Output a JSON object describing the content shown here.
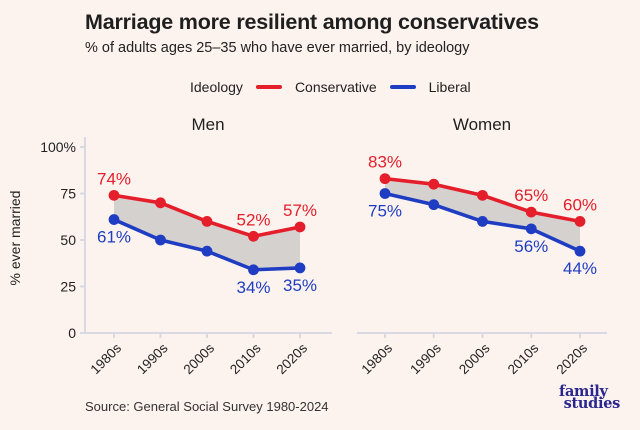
{
  "header": {
    "title": "Marriage more resilient among conservatives",
    "subtitle": "% of adults ages 25–35 who have ever married, by ideology"
  },
  "legend": {
    "title": "Ideology",
    "items": [
      {
        "label": "Conservative",
        "color": "#e41e2a"
      },
      {
        "label": "Liberal",
        "color": "#1f3dc2"
      }
    ]
  },
  "colors": {
    "background": "#fcf3ee",
    "text": "#1f1f1f",
    "subtext": "#333333",
    "axis": "#d9d9e3",
    "band": "#d5d1ce",
    "conservative": "#e41e2a",
    "liberal": "#1f3dc2",
    "logo": "#29278e"
  },
  "chart_data": {
    "type": "line",
    "title": "Marriage more resilient among conservatives",
    "subtitle": "% of adults ages 25–35 who have ever married, by ideology",
    "categories": [
      "1980s",
      "1990s",
      "2000s",
      "2010s",
      "2020s"
    ],
    "xlabel": "",
    "ylabel": "% ever married",
    "ylim": [
      0,
      100
    ],
    "yticks": [
      {
        "value": 100,
        "label": "100%"
      },
      {
        "value": 75,
        "label": "75"
      },
      {
        "value": 50,
        "label": "50"
      },
      {
        "value": 25,
        "label": "25"
      },
      {
        "value": 0,
        "label": "0"
      }
    ],
    "grid": false,
    "legend_position": "top",
    "band_between_series": true,
    "band_color": "#d5d1ce",
    "panels": [
      {
        "title": "Men",
        "series": [
          {
            "name": "Conservative",
            "color": "#e41e2a",
            "values": [
              74,
              70,
              60,
              52,
              57
            ],
            "point_labels": [
              {
                "index": 0,
                "text": "74%",
                "position": "above"
              },
              {
                "index": 3,
                "text": "52%",
                "position": "above"
              },
              {
                "index": 4,
                "text": "57%",
                "position": "above"
              }
            ]
          },
          {
            "name": "Liberal",
            "color": "#1f3dc2",
            "values": [
              61,
              50,
              44,
              34,
              35
            ],
            "point_labels": [
              {
                "index": 0,
                "text": "61%",
                "position": "below"
              },
              {
                "index": 3,
                "text": "34%",
                "position": "below"
              },
              {
                "index": 4,
                "text": "35%",
                "position": "below"
              }
            ]
          }
        ]
      },
      {
        "title": "Women",
        "series": [
          {
            "name": "Conservative",
            "color": "#e41e2a",
            "values": [
              83,
              80,
              74,
              65,
              60
            ],
            "point_labels": [
              {
                "index": 0,
                "text": "83%",
                "position": "above"
              },
              {
                "index": 3,
                "text": "65%",
                "position": "above"
              },
              {
                "index": 4,
                "text": "60%",
                "position": "above"
              }
            ]
          },
          {
            "name": "Liberal",
            "color": "#1f3dc2",
            "values": [
              75,
              69,
              60,
              56,
              44
            ],
            "point_labels": [
              {
                "index": 0,
                "text": "75%",
                "position": "below"
              },
              {
                "index": 3,
                "text": "56%",
                "position": "below"
              },
              {
                "index": 4,
                "text": "44%",
                "position": "below"
              }
            ]
          }
        ]
      }
    ]
  },
  "footer": {
    "source": "Source: General Social Survey 1980-2024",
    "logo_line1": "family",
    "logo_line2": "studies"
  }
}
